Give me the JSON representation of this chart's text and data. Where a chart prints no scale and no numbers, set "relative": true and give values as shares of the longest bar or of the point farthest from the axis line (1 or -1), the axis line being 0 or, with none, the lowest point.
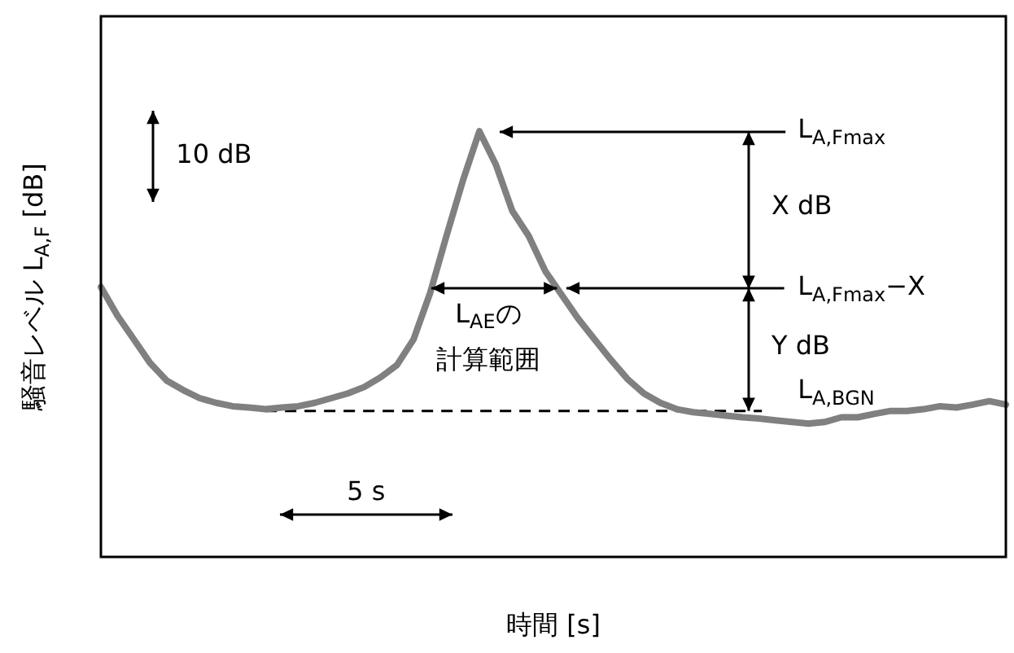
{
  "chart_data": {
    "type": "line",
    "relative": true,
    "xlabel": "時間 [s]",
    "ylabel": "騒音レベル L$_{A,F}$ [dB]",
    "categories": [
      null,
      null,
      null,
      null,
      null,
      null,
      null,
      null,
      null,
      null,
      null,
      null,
      null,
      null,
      null,
      null,
      null,
      null,
      null,
      null,
      null,
      null,
      null,
      null,
      null,
      null,
      null,
      null,
      null,
      null,
      null,
      null,
      null,
      null,
      null,
      null,
      null,
      null,
      null,
      null,
      null,
      null,
      null,
      null,
      null,
      null,
      null,
      null,
      null,
      null,
      null,
      null,
      null,
      null,
      null,
      null
    ],
    "series": [
      {
        "color": "#808080",
        "values": [
          0.634,
          0.567,
          0.511,
          0.455,
          0.414,
          0.392,
          0.373,
          0.362,
          0.354,
          0.351,
          0.347,
          0.351,
          0.354,
          0.362,
          0.373,
          0.384,
          0.399,
          0.422,
          0.451,
          0.511,
          0.619,
          0.754,
          0.884,
          1,
          0.922,
          0.813,
          0.754,
          0.672,
          0.616,
          0.56,
          0.511,
          0.463,
          0.418,
          0.384,
          0.362,
          0.347,
          0.34,
          0.336,
          0.332,
          0.328,
          0.325,
          0.321,
          0.317,
          0.313,
          0.317,
          0.328,
          0.328,
          0.336,
          0.343,
          0.343,
          0.347,
          0.354,
          0.351,
          0.358,
          0.366,
          0.358
        ]
      }
    ],
    "ref_lines": [
      {
        "axis": "y",
        "value": 0.343,
        "label": "L$_{A,BGN}$",
        "color": "#000000",
        "line_style": "dashed"
      }
    ],
    "annotations": [
      "L$_{A,Fmax}$",
      "X dB",
      "L$_{A,Fmax}$−X",
      "Y dB",
      "L$_{AE}$の",
      "計算範囲",
      "10 dB",
      "5 s"
    ]
  }
}
